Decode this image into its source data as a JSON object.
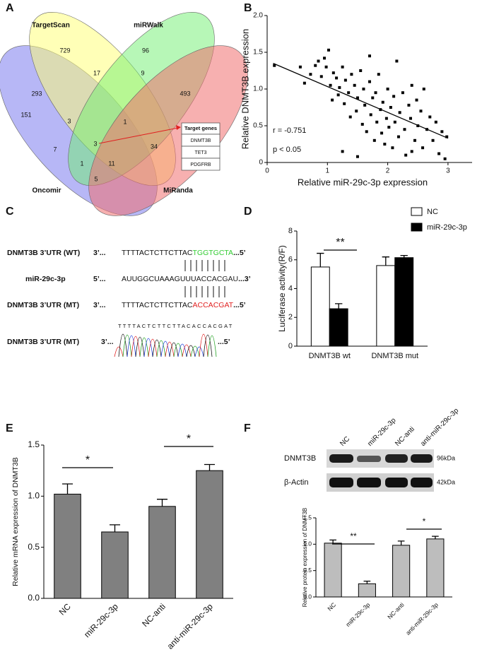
{
  "panels": [
    "A",
    "B",
    "C",
    "D",
    "E",
    "F"
  ],
  "venn": {
    "sets": [
      "TargetScan",
      "miRWalk",
      "Oncomir",
      "MiRanda"
    ],
    "regions": [
      729,
      96,
      293,
      17,
      9,
      493,
      151,
      3,
      1,
      3,
      34,
      7,
      1,
      11,
      5
    ],
    "target_genes": {
      "title": "Target genes",
      "genes": [
        "DNMT3B",
        "TET3",
        "PDGFRB"
      ]
    }
  },
  "sequences": {
    "rows": [
      {
        "label": "DNMT3B 3’UTR (WT)",
        "left": "3’...",
        "seq": "TTTTACTCTTCTTAC",
        "site": "TGGTGCTA",
        "right": "...5’",
        "site_color": "#33cc33"
      },
      {
        "label": "miR-29c-3p",
        "left": "5’...",
        "seq": "AUUGGCUAAAGUUU",
        "site": "ACCACGAU",
        "right": "...3’",
        "site_color": "#222222"
      },
      {
        "label": "DNMT3B 3’UTR (MT)",
        "left": "3’...",
        "seq": "TTTTACTCTTCTTAC",
        "site": "ACCACGAT",
        "right": "...5’",
        "site_color": "#e02020"
      }
    ],
    "chromatogram": {
      "label": "DNMT3B 3’UTR (MT)",
      "left": "3’...",
      "seq": "TTTTACTCTTCTTACACCACGAT",
      "right": "...5’"
    }
  },
  "blot": {
    "lanes": [
      "NC",
      "miR-29c-3p",
      "NC-anti",
      "anti-miR-29c-3p"
    ],
    "rows": [
      {
        "label": "DNMT3B",
        "size": "96kDa"
      },
      {
        "label": "β-Actin",
        "size": "42kDa"
      }
    ]
  },
  "chart_data": [
    {
      "type": "scatter",
      "x_label": "Relative miR-29c-3p expression",
      "y_label": "Relative DNMT3B expression",
      "xlim": [
        0,
        3.4
      ],
      "xticks": [
        0,
        1,
        2,
        3
      ],
      "ylim": [
        0,
        2
      ],
      "yticks": [
        0,
        0.5,
        {
          "value": 1,
          "label": "1.0"
        },
        1.5,
        {
          "value": 2,
          "label": "2.0"
        }
      ],
      "color": "#000000",
      "x": [
        0.12,
        0.55,
        0.62,
        0.72,
        0.8,
        0.85,
        0.9,
        0.95,
        0.98,
        1.02,
        1.05,
        1.08,
        1.1,
        1.15,
        1.18,
        1.2,
        1.25,
        1.28,
        1.3,
        1.35,
        1.38,
        1.4,
        1.45,
        1.48,
        1.5,
        1.55,
        1.58,
        1.6,
        1.62,
        1.65,
        1.7,
        1.72,
        1.75,
        1.78,
        1.8,
        1.82,
        1.85,
        1.88,
        1.9,
        1.92,
        1.95,
        1.98,
        2.0,
        2.02,
        2.05,
        2.08,
        2.1,
        2.12,
        2.15,
        2.18,
        2.2,
        2.25,
        2.28,
        2.3,
        2.35,
        2.38,
        2.4,
        2.45,
        2.48,
        2.5,
        2.55,
        2.58,
        2.6,
        2.65,
        2.7,
        2.75,
        2.8,
        2.85,
        2.9,
        2.95,
        2.98,
        1.5,
        1.25,
        2.4,
        1.7
      ],
      "values": [
        1.32,
        1.3,
        1.08,
        1.2,
        1.32,
        1.38,
        1.17,
        1.42,
        1.3,
        1.53,
        1.05,
        0.85,
        1.22,
        1.15,
        0.92,
        1.02,
        1.3,
        0.8,
        1.12,
        0.95,
        0.62,
        1.2,
        1.05,
        0.7,
        0.88,
        1.25,
        0.52,
        1.0,
        0.78,
        0.42,
        1.1,
        0.65,
        0.88,
        0.3,
        0.95,
        0.55,
        1.2,
        0.72,
        0.4,
        0.82,
        0.25,
        0.6,
        1.0,
        0.48,
        0.75,
        0.2,
        0.9,
        0.55,
        1.38,
        0.35,
        0.68,
        0.95,
        0.45,
        0.1,
        0.78,
        0.6,
        1.05,
        0.3,
        0.85,
        0.5,
        0.7,
        0.2,
        1.0,
        0.45,
        0.62,
        0.3,
        0.55,
        0.12,
        0.42,
        0.05,
        0.35,
        0.08,
        0.15,
        0.15,
        1.45
      ],
      "fit_line": {
        "x": [
          0.1,
          3.0
        ],
        "y": [
          1.35,
          0.33
        ]
      },
      "annotations": [
        "r = -0.751",
        "p < 0.05"
      ]
    },
    {
      "type": "bar",
      "y_label": "Luciferase activity(R/F)",
      "categories": [
        "DNMT3B wt",
        "DNMT3B mut"
      ],
      "series": [
        {
          "name": "NC",
          "color": "#ffffff",
          "values": [
            5.5,
            5.6
          ],
          "errors": [
            0.95,
            0.6
          ]
        },
        {
          "name": "miR-29c-3p",
          "color": "#000000",
          "values": [
            2.6,
            6.15
          ],
          "errors": [
            0.35,
            0.15
          ]
        }
      ],
      "ylim": [
        0,
        8
      ],
      "yticks": [
        0,
        2,
        4,
        6,
        8
      ],
      "significance": [
        "**"
      ]
    },
    {
      "type": "bar",
      "y_label": "Relative mRNA expression of DNMT3B",
      "categories": [
        "NC",
        "miR-29c-3p",
        "NC-anti",
        "anti-miR-29c-3p"
      ],
      "values": [
        1.02,
        0.65,
        0.9,
        1.25
      ],
      "errors": [
        0.1,
        0.07,
        0.07,
        0.06
      ],
      "color": "#808080",
      "ylim": [
        0,
        1.5
      ],
      "yticks": [
        {
          "value": 0,
          "label": "0.0"
        },
        0.5,
        {
          "value": 1,
          "label": "1.0"
        },
        1.5
      ],
      "significance": [
        "*",
        "*"
      ]
    },
    {
      "type": "bar",
      "y_label": "Relative protein expression of DNMT3B",
      "categories": [
        "NC",
        "miR-29c-3p",
        "NC-anti",
        "anti-miR-29c-3p"
      ],
      "values": [
        1.02,
        0.25,
        0.98,
        1.1
      ],
      "errors": [
        0.06,
        0.05,
        0.08,
        0.05
      ],
      "color": "#bdbdbd",
      "ylim": [
        0,
        1.5
      ],
      "yticks": [
        {
          "value": 0,
          "label": "0.0"
        },
        0.5,
        {
          "value": 1,
          "label": "1.0"
        },
        1.5
      ],
      "significance": [
        "**",
        "*"
      ]
    }
  ]
}
